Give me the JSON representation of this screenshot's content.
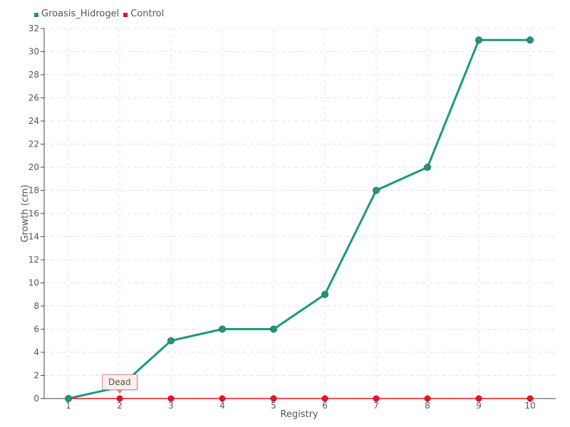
{
  "chart_data": {
    "type": "line",
    "title": "",
    "xlabel": "Registry",
    "ylabel": "Growth (cm)",
    "x": [
      "1",
      "2",
      "3",
      "4",
      "5",
      "6",
      "7",
      "8",
      "9",
      "10"
    ],
    "ylim": [
      0,
      32
    ],
    "yticks": [
      0,
      2,
      4,
      6,
      8,
      10,
      12,
      14,
      16,
      18,
      20,
      22,
      24,
      26,
      28,
      30,
      32
    ],
    "grid": true,
    "legend_position": "top-left",
    "series": [
      {
        "name": "Groasis_Hidrogel",
        "color": "#1a9a7a",
        "values": [
          0,
          1,
          5,
          6,
          6,
          9,
          18,
          20,
          31,
          31
        ]
      },
      {
        "name": "Control",
        "color": "#e8141e",
        "values": [
          0,
          0,
          0,
          0,
          0,
          0,
          0,
          0,
          0,
          0
        ]
      }
    ],
    "annotations": [
      {
        "text": "Dead",
        "x": "2",
        "series": "Control"
      }
    ]
  }
}
